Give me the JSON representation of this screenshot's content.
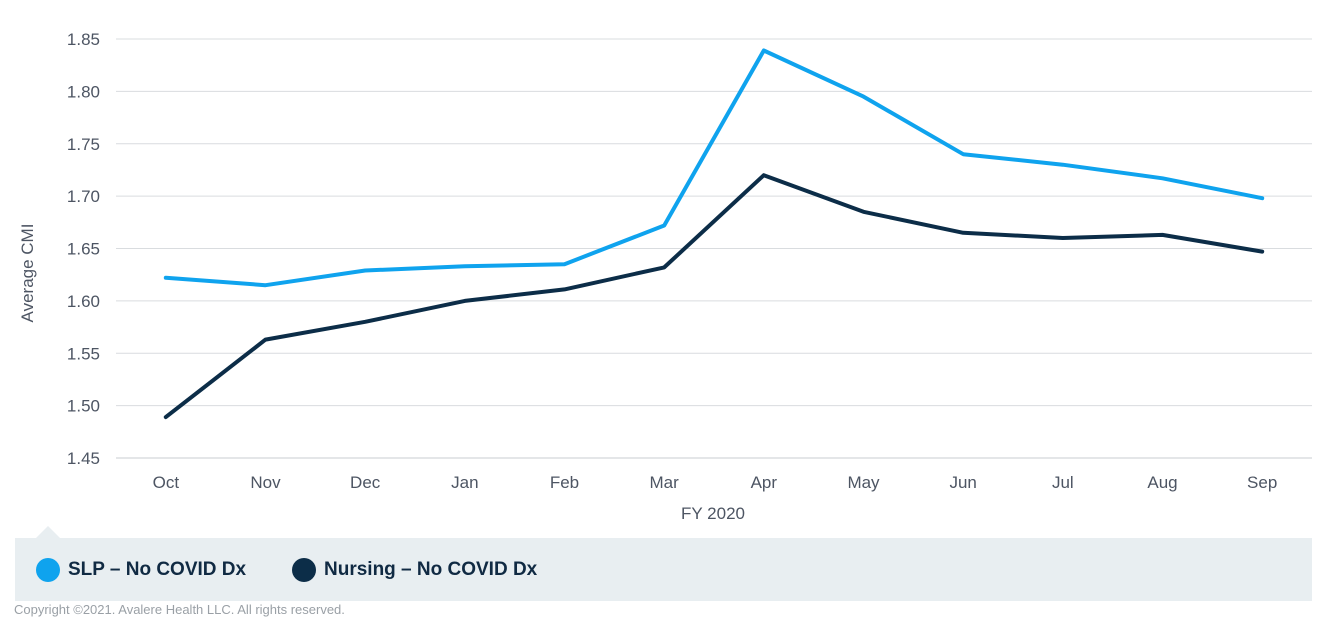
{
  "chart_data": {
    "type": "line",
    "categories": [
      "Oct",
      "Nov",
      "Dec",
      "Jan",
      "Feb",
      "Mar",
      "Apr",
      "May",
      "Jun",
      "Jul",
      "Aug",
      "Sep"
    ],
    "series": [
      {
        "name": "SLP – No COVID Dx",
        "color": "#0fa3ee",
        "values": [
          1.622,
          1.615,
          1.629,
          1.633,
          1.635,
          1.672,
          1.839,
          1.795,
          1.74,
          1.73,
          1.717,
          1.698
        ]
      },
      {
        "name": "Nursing – No COVID Dx",
        "color": "#0c2d48",
        "values": [
          1.489,
          1.563,
          1.58,
          1.6,
          1.611,
          1.632,
          1.72,
          1.685,
          1.665,
          1.66,
          1.663,
          1.647
        ]
      }
    ],
    "xlabel": "FY 2020",
    "ylabel": "Average CMI",
    "ylim": [
      1.45,
      1.85
    ],
    "yticks": [
      "1.45",
      "1.50",
      "1.55",
      "1.60",
      "1.65",
      "1.70",
      "1.75",
      "1.80",
      "1.85"
    ],
    "grid": true,
    "legend_position": "bottom"
  },
  "legend": {
    "items": [
      {
        "label": "SLP – No COVID Dx",
        "color": "#0fa3ee"
      },
      {
        "label": "Nursing – No COVID Dx",
        "color": "#0c2d48"
      }
    ]
  },
  "copyright": "Copyright ©2021. Avalere Health LLC. All rights reserved."
}
